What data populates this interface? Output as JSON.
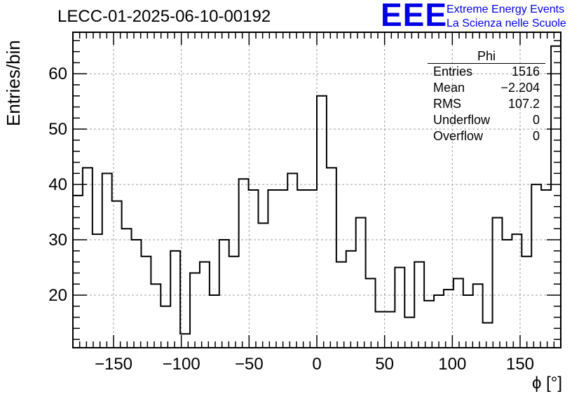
{
  "header": {
    "run_title": "LECC-01-2025-06-10-00192",
    "logo_text": "EEE",
    "logo_line1": "Extreme Energy Events",
    "logo_line2": "La Scienza nelle Scuole"
  },
  "stats_box": {
    "name": "Phi",
    "rows": [
      {
        "label": "Entries",
        "value": "1516"
      },
      {
        "label": "Mean",
        "value": "−2.204"
      },
      {
        "label": "RMS",
        "value": "107.2"
      },
      {
        "label": "Underflow",
        "value": "0"
      },
      {
        "label": "Overflow",
        "value": "0"
      }
    ]
  },
  "colors": {
    "line": "#000000",
    "grid": "#a0a0a0",
    "logo": "#0000e6"
  },
  "chart_data": {
    "type": "histogram",
    "title": "LECC-01-2025-06-10-00192",
    "xlabel": "ϕ [°]",
    "ylabel": "Entries/bin",
    "xlim": [
      -180,
      180
    ],
    "ylim": [
      10.5,
      67.5
    ],
    "xticks": [
      -150,
      -100,
      -50,
      0,
      50,
      100,
      150
    ],
    "yticks": [
      20,
      30,
      40,
      50,
      60
    ],
    "bin_width": 7.2,
    "grid": true,
    "bin_counts": [
      38,
      43,
      31,
      42,
      37,
      32,
      30,
      27,
      22,
      18,
      28,
      13,
      24,
      26,
      20,
      30,
      27,
      41,
      39,
      33,
      39,
      39,
      42,
      39,
      39,
      56,
      43,
      26,
      28,
      34,
      23,
      17,
      17,
      25,
      16,
      26,
      19,
      20,
      21,
      23,
      20,
      22,
      15,
      34,
      30,
      31,
      27,
      40,
      39,
      65
    ]
  }
}
